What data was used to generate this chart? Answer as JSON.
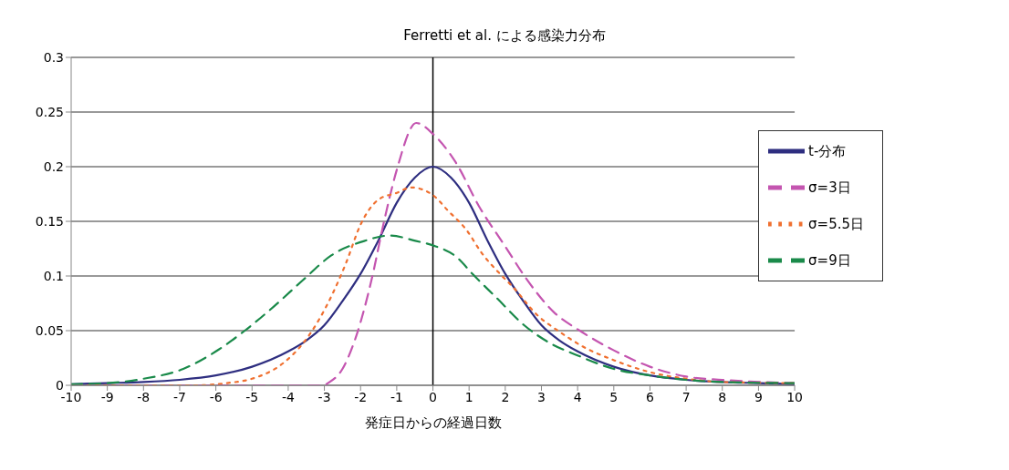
{
  "chart_data": {
    "type": "line",
    "title": "Ferretti et al. による感染力分布",
    "xlabel": "発症日からの経過日数",
    "xlim": [
      -10,
      10
    ],
    "xticks": [
      -10,
      -9,
      -8,
      -7,
      -6,
      -5,
      -4,
      -3,
      -2,
      -1,
      0,
      1,
      2,
      3,
      4,
      5,
      6,
      7,
      8,
      9,
      10
    ],
    "ylim": [
      0,
      0.3
    ],
    "yticks": [
      0,
      0.05,
      0.1,
      0.15,
      0.2,
      0.25,
      0.3
    ],
    "grid": "y",
    "legend": "right",
    "marker": "none",
    "ref_lines": [
      {
        "axis": "x",
        "value": 0,
        "color": "#000000"
      }
    ],
    "series": [
      {
        "name": "t-分布",
        "color": "#2e2e80",
        "line_style": "solid",
        "x": [
          -10,
          -9,
          -8,
          -7,
          -6,
          -5,
          -4,
          -3.5,
          -3,
          -2.5,
          -2,
          -1.5,
          -1,
          -0.5,
          0,
          0.5,
          1,
          1.5,
          2,
          2.5,
          3,
          3.5,
          4,
          5,
          6,
          7,
          8,
          9,
          10
        ],
        "values": [
          0.001,
          0.002,
          0.003,
          0.005,
          0.009,
          0.017,
          0.031,
          0.041,
          0.055,
          0.077,
          0.102,
          0.133,
          0.167,
          0.19,
          0.2,
          0.19,
          0.167,
          0.133,
          0.102,
          0.077,
          0.055,
          0.041,
          0.031,
          0.017,
          0.009,
          0.005,
          0.003,
          0.002,
          0.001
        ]
      },
      {
        "name": "σ=3日",
        "color": "#c455b0",
        "line_style": "dashed",
        "x": [
          -10,
          -4,
          -3,
          -2.9,
          -2.5,
          -2.1,
          -1.7,
          -1.35,
          -1,
          -0.46,
          0,
          0.63,
          1.27,
          2,
          2.55,
          3.34,
          4.06,
          5,
          6,
          7,
          8,
          10
        ],
        "values": [
          0,
          0,
          0,
          0.002,
          0.015,
          0.047,
          0.096,
          0.15,
          0.197,
          0.24,
          0.23,
          0.204,
          0.164,
          0.127,
          0.099,
          0.067,
          0.05,
          0.032,
          0.017,
          0.008,
          0.005,
          0.002
        ]
      },
      {
        "name": "σ=5.5日",
        "color": "#f07030",
        "line_style": "dotted",
        "x": [
          -10,
          -6.5,
          -5.7,
          -5,
          -4.15,
          -3.6,
          -3.15,
          -2.77,
          -2.4,
          -2,
          -1.5,
          -1,
          -0.6,
          0,
          0.41,
          0.93,
          1.35,
          1.91,
          2.21,
          2.89,
          3.5,
          4.17,
          5,
          6,
          7,
          8,
          10
        ],
        "values": [
          0,
          0,
          0.002,
          0.006,
          0.02,
          0.038,
          0.06,
          0.084,
          0.112,
          0.147,
          0.17,
          0.176,
          0.181,
          0.174,
          0.16,
          0.142,
          0.121,
          0.1,
          0.09,
          0.064,
          0.049,
          0.035,
          0.023,
          0.012,
          0.006,
          0.003,
          0.002
        ]
      },
      {
        "name": "σ=9日",
        "color": "#1a8a4a",
        "line_style": "dashed",
        "x": [
          -10,
          -9,
          -8,
          -6.9,
          -6,
          -5.2,
          -4.4,
          -3.6,
          -2.8,
          -1.9,
          -1.2,
          -0.46,
          0,
          0.63,
          1.12,
          1.76,
          2.52,
          3.27,
          3.95,
          5,
          6,
          7,
          8,
          10
        ],
        "values": [
          0.001,
          0.002,
          0.006,
          0.015,
          0.031,
          0.05,
          0.072,
          0.096,
          0.119,
          0.132,
          0.137,
          0.132,
          0.128,
          0.118,
          0.101,
          0.08,
          0.055,
          0.038,
          0.028,
          0.015,
          0.009,
          0.005,
          0.003,
          0.002
        ]
      }
    ]
  }
}
